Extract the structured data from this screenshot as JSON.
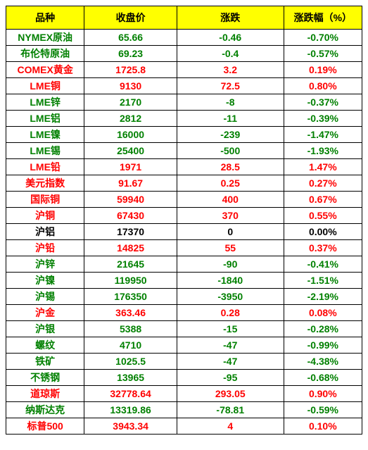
{
  "table": {
    "header_bg": "#ffff00",
    "border_color": "#000000",
    "columns": [
      {
        "label": "品种"
      },
      {
        "label": "收盘价"
      },
      {
        "label": "涨跌"
      },
      {
        "label": "涨跌幅（%）"
      }
    ],
    "rows": [
      {
        "name": "NYMEX原油",
        "close": "65.66",
        "chg": "-0.46",
        "pct": "-0.70%",
        "color": "green"
      },
      {
        "name": "布伦特原油",
        "close": "69.23",
        "chg": "-0.4",
        "pct": "-0.57%",
        "color": "green"
      },
      {
        "name": "COMEX黄金",
        "close": "1725.8",
        "chg": "3.2",
        "pct": "0.19%",
        "color": "red"
      },
      {
        "name": "LME铜",
        "close": "9130",
        "chg": "72.5",
        "pct": "0.80%",
        "color": "red"
      },
      {
        "name": "LME锌",
        "close": "2170",
        "chg": "-8",
        "pct": "-0.37%",
        "color": "green"
      },
      {
        "name": "LME铝",
        "close": "2812",
        "chg": "-11",
        "pct": "-0.39%",
        "color": "green"
      },
      {
        "name": "LME镍",
        "close": "16000",
        "chg": "-239",
        "pct": "-1.47%",
        "color": "green"
      },
      {
        "name": "LME锡",
        "close": "25400",
        "chg": "-500",
        "pct": "-1.93%",
        "color": "green"
      },
      {
        "name": "LME铅",
        "close": "1971",
        "chg": "28.5",
        "pct": "1.47%",
        "color": "red"
      },
      {
        "name": "美元指数",
        "close": "91.67",
        "chg": "0.25",
        "pct": "0.27%",
        "color": "red"
      },
      {
        "name": "国际铜",
        "close": "59940",
        "chg": "400",
        "pct": "0.67%",
        "color": "red"
      },
      {
        "name": "沪铜",
        "close": "67430",
        "chg": "370",
        "pct": "0.55%",
        "color": "red"
      },
      {
        "name": "沪铝",
        "close": "17370",
        "chg": "0",
        "pct": "0.00%",
        "color": "black"
      },
      {
        "name": "沪铅",
        "close": "14825",
        "chg": "55",
        "pct": "0.37%",
        "color": "red"
      },
      {
        "name": "沪锌",
        "close": "21645",
        "chg": "-90",
        "pct": "-0.41%",
        "color": "green"
      },
      {
        "name": "沪镍",
        "close": "119950",
        "chg": "-1840",
        "pct": "-1.51%",
        "color": "green"
      },
      {
        "name": "沪锡",
        "close": "176350",
        "chg": "-3950",
        "pct": "-2.19%",
        "color": "green"
      },
      {
        "name": "沪金",
        "close": "363.46",
        "chg": "0.28",
        "pct": "0.08%",
        "color": "red"
      },
      {
        "name": "沪银",
        "close": "5388",
        "chg": "-15",
        "pct": "-0.28%",
        "color": "green"
      },
      {
        "name": "螺纹",
        "close": "4710",
        "chg": "-47",
        "pct": "-0.99%",
        "color": "green"
      },
      {
        "name": "铁矿",
        "close": "1025.5",
        "chg": "-47",
        "pct": "-4.38%",
        "color": "green"
      },
      {
        "name": "不锈钢",
        "close": "13965",
        "chg": "-95",
        "pct": "-0.68%",
        "color": "green"
      },
      {
        "name": "道琼斯",
        "close": "32778.64",
        "chg": "293.05",
        "pct": "0.90%",
        "color": "red"
      },
      {
        "name": "纳斯达克",
        "close": "13319.86",
        "chg": "-78.81",
        "pct": "-0.59%",
        "color": "green"
      },
      {
        "name": "标普500",
        "close": "3943.34",
        "chg": "4",
        "pct": "0.10%",
        "color": "red"
      }
    ]
  }
}
